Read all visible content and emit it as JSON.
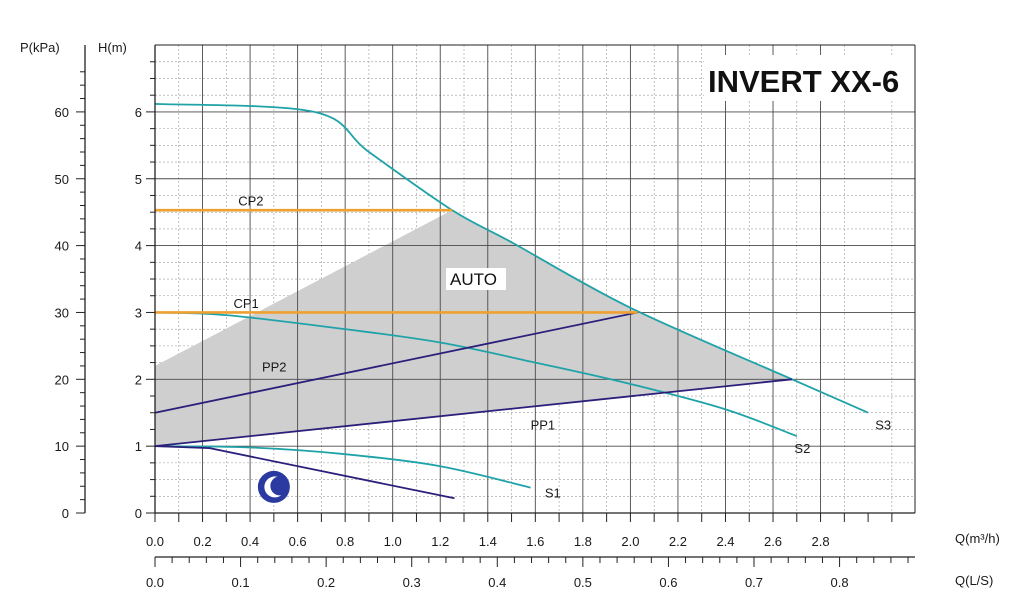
{
  "chart_data": {
    "type": "line",
    "title": "INVERT XX-6",
    "xlabel": "Q(m³/h)",
    "xlabel_secondary": "Q(L/S)",
    "ylabel": "H(m)",
    "ylabel_secondary": "P(kPa)",
    "xlim": [
      0,
      3.2
    ],
    "ylim": [
      0,
      7
    ],
    "grid": true,
    "x_ticks": [
      0,
      0.2,
      0.4,
      0.6,
      0.8,
      1.0,
      1.2,
      1.4,
      1.6,
      1.8,
      2.0,
      2.2,
      2.4,
      2.6,
      2.8
    ],
    "x_tick_labels": [
      "0.0",
      "0.2",
      "0.4",
      "0.6",
      "0.8",
      "1.0",
      "1.2",
      "1.4",
      "1.6",
      "1.8",
      "2.0",
      "2.2",
      "2.4",
      "2.6",
      "2.8"
    ],
    "x2_ticks": [
      0,
      0.1,
      0.2,
      0.3,
      0.4,
      0.5,
      0.6,
      0.7,
      0.8
    ],
    "x2_tick_labels": [
      "0.0",
      "0.1",
      "0.2",
      "0.3",
      "0.4",
      "0.5",
      "0.6",
      "0.7",
      "0.8"
    ],
    "y_ticks": [
      0,
      1,
      2,
      3,
      4,
      5,
      6
    ],
    "y_tick_labels": [
      "0",
      "1",
      "2",
      "3",
      "4",
      "5",
      "6"
    ],
    "y2_ticks": [
      0,
      10,
      20,
      30,
      40,
      50,
      60
    ],
    "y2_tick_labels": [
      "0",
      "10",
      "20",
      "30",
      "40",
      "50",
      "60"
    ],
    "auto_region": {
      "label": "AUTO",
      "polygon": [
        [
          0,
          1.0
        ],
        [
          0,
          2.2
        ],
        [
          1.25,
          4.53
        ],
        [
          1.5,
          4.05
        ],
        [
          2.0,
          3.07
        ],
        [
          2.68,
          2.0
        ]
      ],
      "color": "#cfcfcf"
    },
    "series": [
      {
        "name": "S3",
        "kind": "speed",
        "color": "#1fa3a8",
        "points": [
          [
            0,
            6.12
          ],
          [
            0.67,
            6.0
          ],
          [
            0.9,
            5.4
          ],
          [
            1.25,
            4.53
          ],
          [
            1.5,
            4.05
          ],
          [
            2.0,
            3.07
          ],
          [
            2.68,
            2.0
          ],
          [
            3.0,
            1.5
          ]
        ]
      },
      {
        "name": "S2",
        "kind": "speed",
        "color": "#1fa3a8",
        "points": [
          [
            0,
            3.0
          ],
          [
            0.3,
            2.96
          ],
          [
            0.8,
            2.75
          ],
          [
            1.2,
            2.55
          ],
          [
            1.6,
            2.25
          ],
          [
            2.0,
            1.93
          ],
          [
            2.4,
            1.55
          ],
          [
            2.7,
            1.15
          ]
        ]
      },
      {
        "name": "S1",
        "kind": "speed",
        "color": "#1fa3a8",
        "points": [
          [
            0,
            1.0
          ],
          [
            0.4,
            0.98
          ],
          [
            0.8,
            0.88
          ],
          [
            1.2,
            0.7
          ],
          [
            1.58,
            0.38
          ]
        ]
      },
      {
        "name": "PP2",
        "kind": "proportional",
        "color": "#2a1f7a",
        "points": [
          [
            0,
            1.5
          ],
          [
            2.03,
            3.0
          ]
        ]
      },
      {
        "name": "PP1",
        "kind": "proportional",
        "color": "#2a1f7a",
        "points": [
          [
            0,
            1.0
          ],
          [
            2.68,
            2.0
          ]
        ]
      },
      {
        "name": "night",
        "kind": "night",
        "color": "#2a1f7a",
        "points": [
          [
            0,
            1.0
          ],
          [
            0.23,
            0.97
          ],
          [
            1.26,
            0.22
          ]
        ]
      },
      {
        "name": "CP2",
        "kind": "constant",
        "color": "#f0a030",
        "points": [
          [
            0,
            4.53
          ],
          [
            1.25,
            4.53
          ]
        ]
      },
      {
        "name": "CP1",
        "kind": "constant",
        "color": "#f0a030",
        "points": [
          [
            0,
            3.0
          ],
          [
            2.03,
            3.0
          ]
        ]
      }
    ],
    "labels": [
      {
        "text": "CP2",
        "x": 0.35,
        "y": 4.6
      },
      {
        "text": "CP1",
        "x": 0.33,
        "y": 3.07
      },
      {
        "text": "PP2",
        "x": 0.45,
        "y": 2.12
      },
      {
        "text": "PP1",
        "x": 1.58,
        "y": 1.25
      },
      {
        "text": "S1",
        "x": 1.64,
        "y": 0.23
      },
      {
        "text": "S2",
        "x": 2.69,
        "y": 0.9
      },
      {
        "text": "S3",
        "x": 3.03,
        "y": 1.25
      }
    ],
    "night_icon": {
      "name": "moon-icon",
      "x": 0.5,
      "y": 0.39,
      "color": "#2a3aa0"
    }
  }
}
